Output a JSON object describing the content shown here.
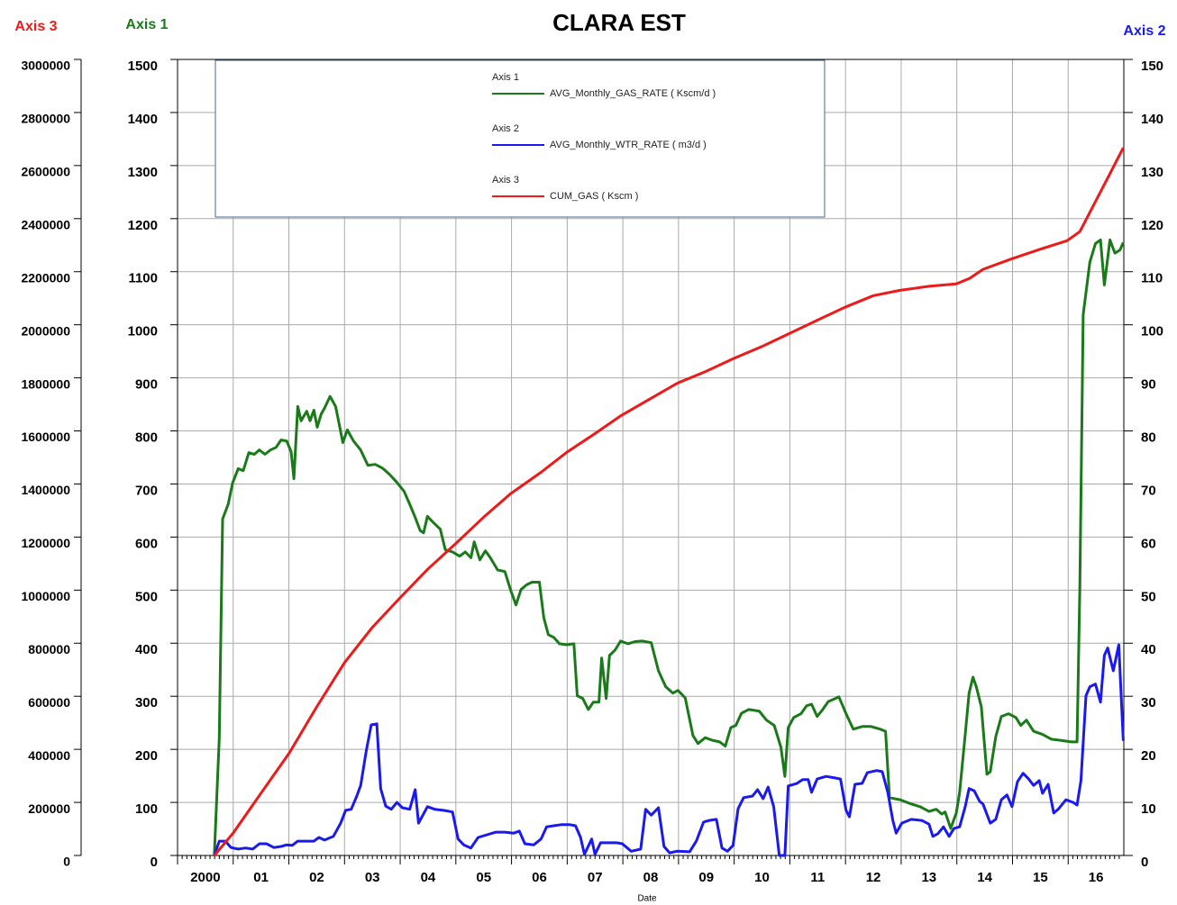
{
  "chart_data": {
    "type": "line",
    "title": "CLARA EST",
    "x_label": "Date",
    "y_label": "Axis 1",
    "y2_label": "Axis 2",
    "y3_label": "Axis 3",
    "y_label_color": "#1a7a1a",
    "y2_label_color": "#1a1aee",
    "y3_label_color": "#ee1a1a",
    "grid": true,
    "xlim": [
      2000,
      2017
    ],
    "xticks": [
      2000,
      {
        "value": 2001,
        "label": "01"
      },
      {
        "value": 2002,
        "label": "02"
      },
      {
        "value": 2003,
        "label": "03"
      },
      {
        "value": 2004,
        "label": "04"
      },
      {
        "value": 2005,
        "label": "05"
      },
      {
        "value": 2006,
        "label": "06"
      },
      {
        "value": 2007,
        "label": "07"
      },
      {
        "value": 2008,
        "label": "08"
      },
      {
        "value": 2009,
        "label": "09"
      },
      {
        "value": 2010,
        "label": "10"
      },
      {
        "value": 2011,
        "label": "11"
      },
      {
        "value": 2012,
        "label": "12"
      },
      {
        "value": 2013,
        "label": "13"
      },
      {
        "value": 2014,
        "label": "14"
      },
      {
        "value": 2015,
        "label": "15"
      },
      {
        "value": 2016,
        "label": "16"
      }
    ],
    "ylim": [
      0,
      1500
    ],
    "yticks": [
      0,
      100,
      200,
      300,
      400,
      500,
      600,
      700,
      800,
      900,
      1000,
      1100,
      1200,
      1300,
      1400,
      1500
    ],
    "y2lim": [
      0,
      150
    ],
    "y2ticks": [
      0,
      10,
      20,
      30,
      40,
      50,
      60,
      70,
      80,
      90,
      100,
      110,
      120,
      130,
      140,
      150
    ],
    "y3lim": [
      0,
      3000000
    ],
    "y3ticks": [
      0,
      200000,
      400000,
      600000,
      800000,
      1000000,
      1200000,
      1400000,
      1600000,
      1800000,
      2000000,
      2200000,
      2400000,
      2600000,
      2800000,
      3000000
    ],
    "series": [
      {
        "name": "AVG_Monthly_GAS_RATE ( Kscm/d )",
        "legend_group": "Axis 1",
        "color": "#1a7a1a",
        "axis": "y",
        "x": [
          2000.66,
          2000.75,
          2000.81,
          2000.91,
          2000.99,
          2001.09,
          2001.18,
          2001.28,
          2001.38,
          2001.47,
          2001.57,
          2001.67,
          2001.77,
          2001.86,
          2001.96,
          2002.04,
          2002.09,
          2002.16,
          2002.22,
          2002.32,
          2002.38,
          2002.45,
          2002.51,
          2002.58,
          2002.64,
          2002.74,
          2002.84,
          2002.9,
          2002.97,
          2003.05,
          2003.16,
          2003.29,
          2003.42,
          2003.55,
          2003.68,
          2003.81,
          2003.94,
          2004.07,
          2004.17,
          2004.27,
          2004.36,
          2004.42,
          2004.49,
          2004.59,
          2004.72,
          2004.81,
          2004.94,
          2005.07,
          2005.17,
          2005.27,
          2005.33,
          2005.43,
          2005.53,
          2005.62,
          2005.75,
          2005.88,
          2005.98,
          2006.08,
          2006.17,
          2006.27,
          2006.37,
          2006.5,
          2006.58,
          2006.66,
          2006.76,
          2006.86,
          2006.99,
          2007.12,
          2007.18,
          2007.28,
          2007.38,
          2007.47,
          2007.57,
          2007.62,
          2007.7,
          2007.76,
          2007.86,
          2007.96,
          2008.09,
          2008.22,
          2008.35,
          2008.51,
          2008.64,
          2008.77,
          2008.9,
          2008.99,
          2009.12,
          2009.26,
          2009.35,
          2009.48,
          2009.61,
          2009.74,
          2009.84,
          2009.94,
          2010.03,
          2010.13,
          2010.26,
          2010.45,
          2010.58,
          2010.72,
          2010.84,
          2010.91,
          2010.97,
          2011.07,
          2011.2,
          2011.3,
          2011.39,
          2011.49,
          2011.59,
          2011.69,
          2011.82,
          2011.88,
          2012.01,
          2012.14,
          2012.3,
          2012.46,
          2012.62,
          2012.72,
          2012.79,
          2012.98,
          2013.18,
          2013.34,
          2013.5,
          2013.63,
          2013.73,
          2013.79,
          2013.89,
          2013.99,
          2014.05,
          2014.15,
          2014.22,
          2014.29,
          2014.35,
          2014.44,
          2014.54,
          2014.6,
          2014.7,
          2014.8,
          2014.93,
          2015.06,
          2015.15,
          2015.25,
          2015.38,
          2015.54,
          2015.7,
          2015.86,
          2016.06,
          2016.16,
          2016.21,
          2016.27,
          2016.39,
          2016.49,
          2016.58,
          2016.65,
          2016.75,
          2016.84,
          2016.93,
          2016.99
        ],
        "values": [
          0,
          221,
          634,
          662,
          702,
          729,
          725,
          759,
          756,
          764,
          756,
          764,
          769,
          783,
          781,
          761,
          710,
          846,
          819,
          837,
          819,
          839,
          807,
          832,
          843,
          865,
          846,
          815,
          778,
          802,
          781,
          764,
          735,
          737,
          730,
          718,
          703,
          686,
          662,
          637,
          612,
          608,
          639,
          628,
          615,
          576,
          572,
          564,
          572,
          561,
          591,
          557,
          574,
          561,
          538,
          535,
          501,
          472,
          501,
          510,
          515,
          515,
          448,
          416,
          411,
          399,
          397,
          399,
          301,
          296,
          275,
          289,
          289,
          372,
          296,
          377,
          387,
          404,
          399,
          403,
          404,
          401,
          348,
          318,
          306,
          311,
          297,
          226,
          211,
          222,
          217,
          214,
          206,
          241,
          245,
          268,
          275,
          272,
          255,
          245,
          204,
          149,
          241,
          260,
          267,
          282,
          285,
          262,
          275,
          290,
          296,
          299,
          267,
          238,
          243,
          243,
          238,
          234,
          109,
          105,
          97,
          92,
          83,
          87,
          78,
          82,
          51,
          80,
          119,
          228,
          306,
          336,
          318,
          280,
          153,
          158,
          224,
          262,
          267,
          260,
          245,
          255,
          234,
          228,
          219,
          217,
          214,
          214,
          506,
          1019,
          1118,
          1153,
          1160,
          1075,
          1160,
          1135,
          1141,
          1155
        ]
      },
      {
        "name": "AVG_Monthly_WTR_RATE ( m3/d )",
        "legend_group": "Axis 2",
        "color": "#1a1aee",
        "axis": "y2",
        "x": [
          2000.66,
          2000.75,
          2000.86,
          2000.96,
          2001.09,
          2001.22,
          2001.35,
          2001.47,
          2001.6,
          2001.73,
          2001.86,
          2001.96,
          2002.06,
          2002.16,
          2002.32,
          2002.45,
          2002.54,
          2002.64,
          2002.8,
          2002.93,
          2003.02,
          2003.12,
          2003.22,
          2003.29,
          2003.39,
          2003.48,
          2003.58,
          2003.65,
          2003.74,
          2003.84,
          2003.94,
          2004.04,
          2004.17,
          2004.27,
          2004.33,
          2004.49,
          2004.62,
          2004.78,
          2004.94,
          2005.04,
          2005.14,
          2005.27,
          2005.4,
          2005.56,
          2005.72,
          2005.88,
          2006.04,
          2006.14,
          2006.24,
          2006.4,
          2006.53,
          2006.63,
          2006.76,
          2006.89,
          2007.05,
          2007.15,
          2007.24,
          2007.31,
          2007.44,
          2007.5,
          2007.6,
          2007.73,
          2007.89,
          2007.99,
          2008.15,
          2008.32,
          2008.41,
          2008.51,
          2008.64,
          2008.74,
          2008.84,
          2008.97,
          2009.2,
          2009.32,
          2009.45,
          2009.55,
          2009.68,
          2009.78,
          2009.88,
          2009.98,
          2010.07,
          2010.17,
          2010.33,
          2010.42,
          2010.52,
          2010.61,
          2010.71,
          2010.81,
          2010.91,
          2010.97,
          2011.13,
          2011.23,
          2011.33,
          2011.39,
          2011.49,
          2011.65,
          2011.82,
          2011.91,
          2012.01,
          2012.07,
          2012.17,
          2012.3,
          2012.39,
          2012.56,
          2012.66,
          2012.76,
          2012.85,
          2012.91,
          2013.01,
          2013.18,
          2013.37,
          2013.5,
          2013.57,
          2013.66,
          2013.76,
          2013.86,
          2013.95,
          2014.05,
          2014.15,
          2014.22,
          2014.31,
          2014.41,
          2014.47,
          2014.6,
          2014.7,
          2014.8,
          2014.9,
          2014.99,
          2015.09,
          2015.19,
          2015.29,
          2015.38,
          2015.48,
          2015.54,
          2015.64,
          2015.74,
          2015.83,
          2015.96,
          2016.09,
          2016.16,
          2016.23,
          2016.32,
          2016.39,
          2016.49,
          2016.58,
          2016.65,
          2016.71,
          2016.81,
          2016.91,
          2016.99
        ],
        "values": [
          0,
          2.7,
          2.7,
          1.5,
          1.2,
          1.4,
          1.2,
          2.2,
          2.2,
          1.5,
          1.7,
          2.0,
          1.9,
          2.7,
          2.7,
          2.7,
          3.4,
          2.9,
          3.6,
          6.1,
          8.5,
          8.7,
          11.2,
          13.2,
          19.7,
          24.6,
          24.8,
          12.6,
          9.3,
          8.7,
          10.0,
          9.0,
          8.7,
          12.4,
          6.1,
          9.2,
          8.7,
          8.5,
          8.2,
          3.1,
          2.0,
          1.4,
          3.4,
          3.9,
          4.4,
          4.4,
          4.2,
          4.6,
          2.2,
          2.0,
          3.1,
          5.4,
          5.6,
          5.8,
          5.8,
          5.6,
          3.4,
          0.2,
          3.1,
          0.2,
          2.4,
          2.4,
          2.4,
          2.2,
          0.8,
          1.2,
          8.7,
          7.6,
          9.0,
          1.7,
          0.5,
          0.8,
          0.7,
          2.7,
          6.3,
          6.6,
          6.8,
          1.4,
          0.8,
          1.9,
          8.8,
          10.9,
          11.2,
          12.4,
          10.7,
          12.9,
          9.2,
          0,
          0,
          13.1,
          13.6,
          14.3,
          14.3,
          11.9,
          14.4,
          14.9,
          14.6,
          14.4,
          8.5,
          7.3,
          13.4,
          13.6,
          15.6,
          16.0,
          15.8,
          11.9,
          6.6,
          4.2,
          6.1,
          6.8,
          6.6,
          5.9,
          3.6,
          4.1,
          5.4,
          3.6,
          5.1,
          5.4,
          9.2,
          12.6,
          12.2,
          10.2,
          9.7,
          6.1,
          6.8,
          10.5,
          11.4,
          9.2,
          13.9,
          15.5,
          14.4,
          13.2,
          14.1,
          11.7,
          13.4,
          8.0,
          8.8,
          10.5,
          10.0,
          9.5,
          14.1,
          30.1,
          31.8,
          32.3,
          28.9,
          37.7,
          39.1,
          34.8,
          39.7,
          21.6
        ]
      },
      {
        "name": "CUM_GAS ( Kscm )",
        "legend_group": "Axis 3",
        "color": "#ee1a1a",
        "axis": "y3",
        "x": [
          2000.66,
          2001.0,
          2001.5,
          2002.01,
          2002.5,
          2003.0,
          2003.5,
          2004.0,
          2004.5,
          2005.0,
          2005.5,
          2005.98,
          2006.53,
          2006.99,
          2007.5,
          2007.97,
          2008.5,
          2008.98,
          2009.5,
          2009.98,
          2010.5,
          2010.99,
          2011.5,
          2011.99,
          2012.5,
          2012.98,
          2013.5,
          2013.99,
          2014.23,
          2014.47,
          2014.99,
          2015.5,
          2015.98,
          2016.21,
          2016.42,
          2016.74,
          2016.99
        ],
        "values": [
          0,
          85000,
          235000,
          387000,
          560000,
          727000,
          860000,
          972000,
          1080000,
          1176000,
          1275000,
          1363000,
          1444000,
          1519000,
          1590000,
          1658000,
          1722000,
          1780000,
          1825000,
          1872000,
          1918000,
          1967000,
          2018000,
          2066000,
          2110000,
          2130000,
          2145000,
          2154000,
          2175000,
          2209000,
          2249000,
          2285000,
          2317000,
          2351000,
          2436000,
          2565000,
          2667000
        ]
      }
    ]
  }
}
